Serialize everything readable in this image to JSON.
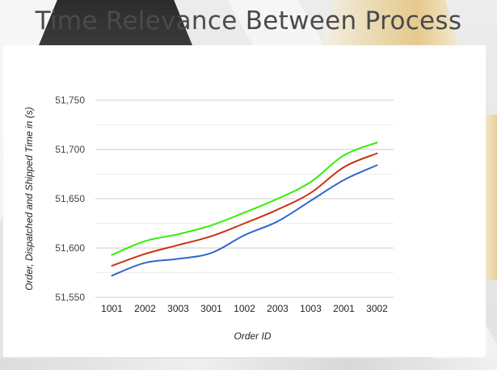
{
  "title": "Time Relevance Between Process",
  "chart_data": {
    "type": "line",
    "categories": [
      "1001",
      "2002",
      "3003",
      "3001",
      "1002",
      "2003",
      "1003",
      "2001",
      "3002"
    ],
    "xlabel": "Order ID",
    "ylabel": "Order, Dispatched and Shipped Time in (s)",
    "ylim": [
      51550,
      51750
    ],
    "yticks": [
      51550,
      51600,
      51650,
      51700,
      51750
    ],
    "ytick_labels": [
      "51,550",
      "51,600",
      "51,650",
      "51,700",
      "51,750"
    ],
    "grid": true,
    "legend": "none",
    "series": [
      {
        "color": "#33ee00",
        "values": [
          51593,
          51607,
          51614,
          51623,
          51636,
          51650,
          51667,
          51694,
          51707
        ]
      },
      {
        "color": "#cc3311",
        "values": [
          51582,
          51594,
          51603,
          51612,
          51625,
          51639,
          51656,
          51682,
          51696
        ]
      },
      {
        "color": "#3366cc",
        "values": [
          51572,
          51585,
          51589,
          51595,
          51613,
          51627,
          51648,
          51669,
          51684
        ]
      }
    ]
  }
}
